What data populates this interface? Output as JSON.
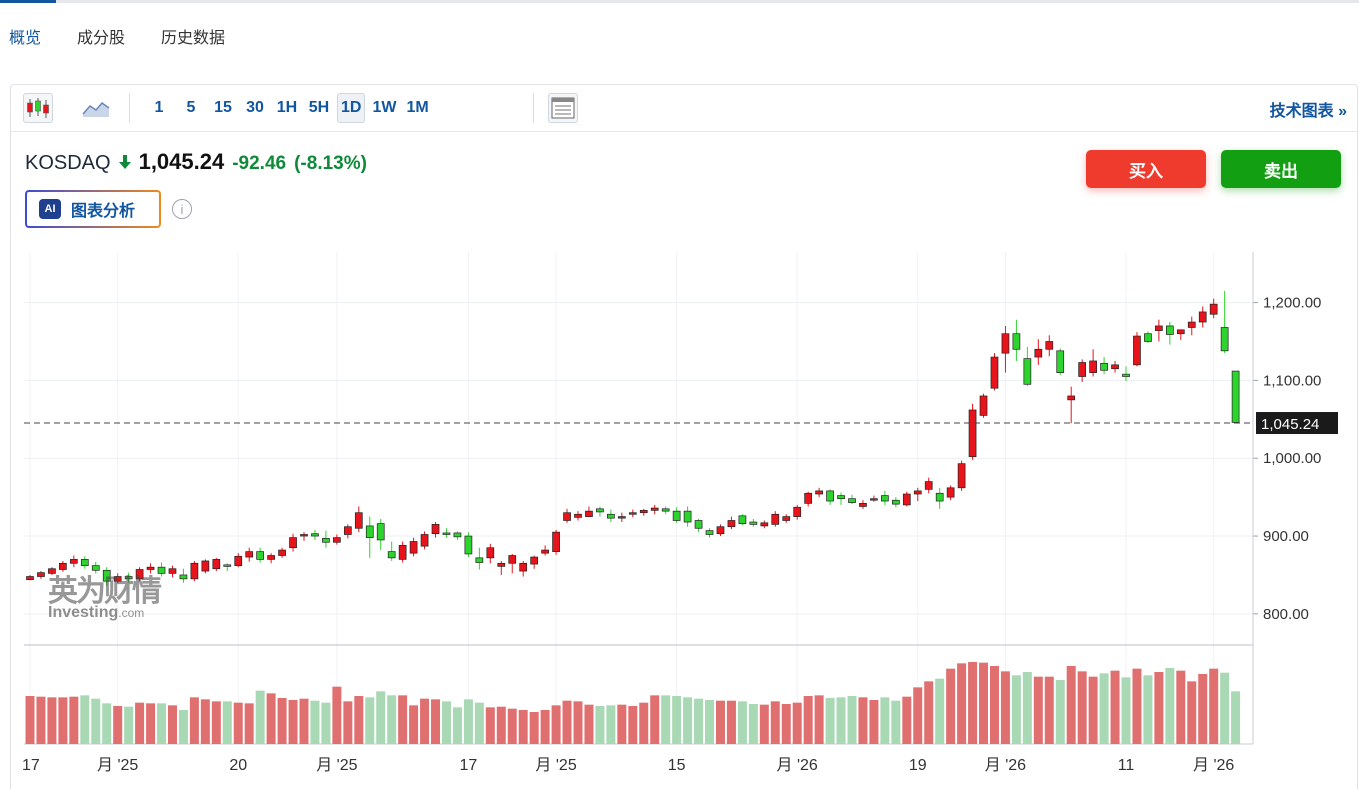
{
  "tabs": [
    {
      "label": "概览",
      "active": true
    },
    {
      "label": "成分股",
      "active": false
    },
    {
      "label": "历史数据",
      "active": false
    }
  ],
  "toolbar": {
    "intervals": [
      "1",
      "5",
      "15",
      "30",
      "1H",
      "5H",
      "1D",
      "1W",
      "1M"
    ],
    "selected_interval": "1D",
    "candlestick_icon": "candlestick-icon",
    "area_icon": "area-chart-icon",
    "layout_icon": "chart-layout-icon",
    "technical_link": "技术图表 »"
  },
  "quote": {
    "name": "KOSDAQ",
    "direction_icon": "down-arrow-icon",
    "price": "1,045.24",
    "change": "-92.46",
    "change_pct": "(-8.13%)"
  },
  "buy_label": "买入",
  "sell_label": "卖出",
  "ai_badge": "AI",
  "ai_label": "图表分析",
  "watermark": {
    "cn": "英为财情",
    "en": "Investing",
    "en_suffix": ".com"
  },
  "colors": {
    "up": "#e8141c",
    "down": "#2ed42e",
    "up_volume": "#e07070",
    "down_volume": "#a8d8b4",
    "link": "#1256a0"
  },
  "chart_data": {
    "type": "candlestick",
    "ylim": [
      760,
      1265
    ],
    "y_ticks": [
      "1,200.00",
      "1,100.00",
      "1,000.00",
      "900.00",
      "800.00"
    ],
    "y_tick_values": [
      1200,
      1100,
      1000,
      900,
      800
    ],
    "last_price_label": "1,045.24",
    "last_price": 1045.24,
    "x_tick_labels": [
      "17",
      "月 '25",
      "20",
      "月 '25",
      "17",
      "月 '25",
      "15",
      "月 '26",
      "19",
      "月 '26",
      "11",
      "月 '26"
    ],
    "x_tick_index": [
      0,
      8,
      19,
      28,
      40,
      48,
      59,
      70,
      81,
      89,
      100,
      108
    ],
    "grid": true,
    "ohlc": [
      [
        844,
        850,
        843,
        848
      ],
      [
        848,
        855,
        845,
        853
      ],
      [
        852,
        860,
        850,
        858
      ],
      [
        857,
        868,
        854,
        865
      ],
      [
        865,
        875,
        860,
        870
      ],
      [
        870,
        874,
        858,
        862
      ],
      [
        862,
        867,
        852,
        856
      ],
      [
        856,
        860,
        836,
        842
      ],
      [
        842,
        852,
        839,
        848
      ],
      [
        848,
        853,
        840,
        845
      ],
      [
        845,
        860,
        842,
        857
      ],
      [
        857,
        865,
        852,
        860
      ],
      [
        860,
        866,
        848,
        852
      ],
      [
        852,
        862,
        847,
        858
      ],
      [
        850,
        858,
        840,
        845
      ],
      [
        845,
        868,
        842,
        865
      ],
      [
        855,
        870,
        852,
        868
      ],
      [
        858,
        872,
        855,
        870
      ],
      [
        863,
        865,
        855,
        861
      ],
      [
        862,
        878,
        860,
        874
      ],
      [
        873,
        885,
        867,
        880
      ],
      [
        880,
        885,
        866,
        870
      ],
      [
        870,
        878,
        865,
        875
      ],
      [
        875,
        885,
        872,
        882
      ],
      [
        885,
        903,
        880,
        898
      ],
      [
        900,
        905,
        894,
        902
      ],
      [
        903,
        908,
        895,
        900
      ],
      [
        897,
        907,
        885,
        892
      ],
      [
        892,
        902,
        889,
        898
      ],
      [
        902,
        915,
        897,
        912
      ],
      [
        910,
        938,
        905,
        930
      ],
      [
        913,
        925,
        872,
        898
      ],
      [
        916,
        922,
        882,
        895
      ],
      [
        880,
        893,
        868,
        872
      ],
      [
        870,
        893,
        866,
        888
      ],
      [
        878,
        898,
        874,
        893
      ],
      [
        887,
        906,
        883,
        902
      ],
      [
        903,
        918,
        898,
        915
      ],
      [
        904,
        910,
        898,
        902
      ],
      [
        904,
        906,
        895,
        899
      ],
      [
        900,
        905,
        873,
        877
      ],
      [
        872,
        885,
        857,
        866
      ],
      [
        872,
        890,
        865,
        885
      ],
      [
        861,
        868,
        850,
        865
      ],
      [
        865,
        877,
        852,
        875
      ],
      [
        855,
        868,
        848,
        865
      ],
      [
        864,
        875,
        858,
        873
      ],
      [
        878,
        888,
        875,
        882
      ],
      [
        880,
        908,
        876,
        905
      ],
      [
        920,
        935,
        917,
        930
      ],
      [
        924,
        932,
        920,
        928
      ],
      [
        925,
        938,
        924,
        932
      ],
      [
        935,
        938,
        925,
        931
      ],
      [
        928,
        934,
        918,
        923
      ],
      [
        923,
        930,
        918,
        925
      ],
      [
        928,
        934,
        924,
        930
      ],
      [
        930,
        935,
        926,
        933
      ],
      [
        933,
        940,
        928,
        936
      ],
      [
        935,
        938,
        928,
        932
      ],
      [
        932,
        937,
        917,
        920
      ],
      [
        932,
        938,
        912,
        918
      ],
      [
        920,
        922,
        905,
        910
      ],
      [
        907,
        910,
        898,
        902
      ],
      [
        903,
        915,
        900,
        912
      ],
      [
        912,
        925,
        909,
        920
      ],
      [
        926,
        928,
        914,
        916
      ],
      [
        918,
        922,
        912,
        915
      ],
      [
        913,
        920,
        910,
        917
      ],
      [
        915,
        932,
        912,
        928
      ],
      [
        920,
        928,
        917,
        925
      ],
      [
        925,
        940,
        921,
        937
      ],
      [
        942,
        957,
        938,
        955
      ],
      [
        954,
        962,
        950,
        958
      ],
      [
        958,
        960,
        940,
        945
      ],
      [
        952,
        956,
        940,
        948
      ],
      [
        948,
        953,
        941,
        943
      ],
      [
        938,
        946,
        935,
        942
      ],
      [
        948,
        952,
        944,
        948
      ],
      [
        952,
        958,
        940,
        945
      ],
      [
        946,
        950,
        937,
        941
      ],
      [
        940,
        957,
        938,
        954
      ],
      [
        954,
        962,
        945,
        958
      ],
      [
        960,
        975,
        955,
        970
      ],
      [
        955,
        962,
        935,
        945
      ],
      [
        950,
        965,
        946,
        962
      ],
      [
        962,
        997,
        958,
        993
      ],
      [
        1002,
        1070,
        998,
        1062
      ],
      [
        1055,
        1083,
        1052,
        1080
      ],
      [
        1090,
        1135,
        1087,
        1130
      ],
      [
        1135,
        1170,
        1110,
        1160
      ],
      [
        1160,
        1178,
        1125,
        1140
      ],
      [
        1128,
        1143,
        1093,
        1095
      ],
      [
        1130,
        1153,
        1120,
        1140
      ],
      [
        1140,
        1158,
        1131,
        1150
      ],
      [
        1138,
        1141,
        1107,
        1110
      ],
      [
        1075,
        1092,
        1045,
        1080
      ],
      [
        1105,
        1127,
        1098,
        1123
      ],
      [
        1110,
        1140,
        1105,
        1125
      ],
      [
        1122,
        1130,
        1108,
        1113
      ],
      [
        1115,
        1125,
        1110,
        1120
      ],
      [
        1108,
        1118,
        1099,
        1105
      ],
      [
        1120,
        1162,
        1118,
        1157
      ],
      [
        1160,
        1163,
        1148,
        1150
      ],
      [
        1164,
        1178,
        1150,
        1170
      ],
      [
        1170,
        1175,
        1146,
        1159
      ],
      [
        1160,
        1165,
        1152,
        1165
      ],
      [
        1168,
        1182,
        1158,
        1175
      ],
      [
        1175,
        1195,
        1168,
        1188
      ],
      [
        1185,
        1205,
        1180,
        1198
      ],
      [
        1168,
        1215,
        1135,
        1138
      ],
      [
        1112,
        1112,
        1046,
        1046
      ]
    ],
    "volume": [
      72,
      71,
      70,
      70,
      71,
      73,
      68,
      61,
      57,
      56,
      62,
      61,
      61,
      58,
      51,
      70,
      67,
      64,
      64,
      62,
      61,
      80,
      76,
      69,
      66,
      68,
      65,
      62,
      86,
      64,
      72,
      70,
      79,
      73,
      73,
      58,
      68,
      67,
      64,
      55,
      67,
      62,
      55,
      56,
      53,
      51,
      48,
      51,
      58,
      65,
      64,
      59,
      57,
      58,
      59,
      57,
      62,
      73,
      73,
      72,
      70,
      68,
      66,
      65,
      65,
      64,
      60,
      59,
      64,
      60,
      62,
      72,
      73,
      69,
      70,
      72,
      70,
      66,
      70,
      65,
      71,
      85,
      94,
      98,
      113,
      121,
      123,
      122,
      117,
      109,
      103,
      108,
      101,
      101,
      96,
      117,
      109,
      101,
      106,
      110,
      100,
      113,
      103,
      108,
      114,
      110,
      94,
      105,
      113,
      107,
      79
    ]
  }
}
